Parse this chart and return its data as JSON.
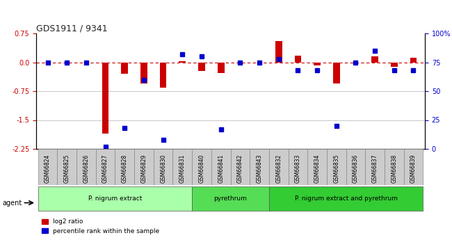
{
  "title": "GDS1911 / 9341",
  "samples": [
    "GSM66824",
    "GSM66825",
    "GSM66826",
    "GSM66827",
    "GSM66828",
    "GSM66829",
    "GSM66830",
    "GSM66831",
    "GSM66840",
    "GSM66841",
    "GSM66842",
    "GSM66843",
    "GSM66832",
    "GSM66833",
    "GSM66834",
    "GSM66835",
    "GSM66836",
    "GSM66837",
    "GSM66838",
    "GSM66839"
  ],
  "log2_ratio": [
    0.0,
    0.0,
    0.0,
    -1.85,
    -0.3,
    -0.55,
    -0.65,
    0.03,
    -0.22,
    -0.28,
    0.0,
    0.0,
    0.55,
    0.18,
    -0.08,
    -0.55,
    0.0,
    0.15,
    -0.12,
    0.12
  ],
  "percentile": [
    75,
    75,
    75,
    2,
    18,
    60,
    8,
    82,
    80,
    17,
    75,
    75,
    78,
    68,
    68,
    20,
    75,
    85,
    68,
    68
  ],
  "groups": [
    {
      "label": "P. nigrum extract",
      "start": 0,
      "end": 7,
      "color": "#aaffaa"
    },
    {
      "label": "pyrethrum",
      "start": 8,
      "end": 11,
      "color": "#55dd55"
    },
    {
      "label": "P. nigrum extract and pyrethrum",
      "start": 12,
      "end": 19,
      "color": "#33cc33"
    }
  ],
  "ylim_left": [
    -2.25,
    0.75
  ],
  "ylim_right": [
    0,
    100
  ],
  "left_ticks": [
    0.75,
    0.0,
    -0.75,
    -1.5,
    -2.25
  ],
  "right_ticks": [
    100,
    75,
    50,
    25,
    0
  ],
  "bar_color_red": "#cc0000",
  "dot_color_blue": "#0000cc",
  "hline_color": "#cc0000",
  "dotted_line_color": "#555555",
  "background_color": "#ffffff",
  "agent_label": "agent",
  "legend_red": "log2 ratio",
  "legend_blue": "percentile rank within the sample"
}
